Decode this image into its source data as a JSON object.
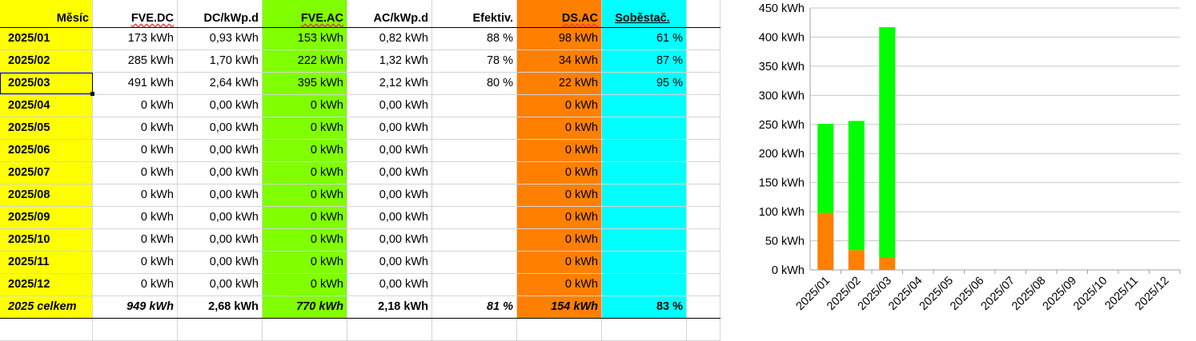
{
  "table": {
    "headers": [
      "Měsíc",
      "FVE.DC",
      "DC/kWp.d",
      "FVE.AC",
      "AC/kWp.d",
      "Efektiv.",
      "DS.AC",
      "Soběstač."
    ],
    "rows": [
      [
        "2025/01",
        "173 kWh",
        "0,93 kWh",
        "153 kWh",
        "0,82 kWh",
        "88 %",
        "98 kWh",
        "61 %"
      ],
      [
        "2025/02",
        "285 kWh",
        "1,70 kWh",
        "222 kWh",
        "1,32 kWh",
        "78 %",
        "34 kWh",
        "87 %"
      ],
      [
        "2025/03",
        "491 kWh",
        "2,64 kWh",
        "395 kWh",
        "2,12 kWh",
        "80 %",
        "22 kWh",
        "95 %"
      ],
      [
        "2025/04",
        "0 kWh",
        "0,00 kWh",
        "0 kWh",
        "0,00 kWh",
        "",
        "0 kWh",
        ""
      ],
      [
        "2025/05",
        "0 kWh",
        "0,00 kWh",
        "0 kWh",
        "0,00 kWh",
        "",
        "0 kWh",
        ""
      ],
      [
        "2025/06",
        "0 kWh",
        "0,00 kWh",
        "0 kWh",
        "0,00 kWh",
        "",
        "0 kWh",
        ""
      ],
      [
        "2025/07",
        "0 kWh",
        "0,00 kWh",
        "0 kWh",
        "0,00 kWh",
        "",
        "0 kWh",
        ""
      ],
      [
        "2025/08",
        "0 kWh",
        "0,00 kWh",
        "0 kWh",
        "0,00 kWh",
        "",
        "0 kWh",
        ""
      ],
      [
        "2025/09",
        "0 kWh",
        "0,00 kWh",
        "0 kWh",
        "0,00 kWh",
        "",
        "0 kWh",
        ""
      ],
      [
        "2025/10",
        "0 kWh",
        "0,00 kWh",
        "0 kWh",
        "0,00 kWh",
        "",
        "0 kWh",
        ""
      ],
      [
        "2025/11",
        "0 kWh",
        "0,00 kWh",
        "0 kWh",
        "0,00 kWh",
        "",
        "0 kWh",
        ""
      ],
      [
        "2025/12",
        "0 kWh",
        "0,00 kWh",
        "0 kWh",
        "0,00 kWh",
        "",
        "0 kWh",
        ""
      ]
    ],
    "total": [
      "2025 celkem",
      "949 kWh",
      "2,68 kWh",
      "770 kWh",
      "2,18 kWh",
      "81 %",
      "154 kWh",
      "83 %"
    ],
    "selected_cell": "2025/03",
    "colors": {
      "month": "#ffff00",
      "fve_ac": "#80ff00",
      "ds_ac": "#ff8000",
      "sobestac": "#00ffff"
    }
  },
  "chart_data": {
    "type": "bar",
    "stacked": true,
    "categories": [
      "2025/01",
      "2025/02",
      "2025/03",
      "2025/04",
      "2025/05",
      "2025/06",
      "2025/07",
      "2025/08",
      "2025/09",
      "2025/10",
      "2025/11",
      "2025/12"
    ],
    "series": [
      {
        "color": "#ff8000",
        "values": [
          98,
          34,
          22,
          0,
          0,
          0,
          0,
          0,
          0,
          0,
          0,
          0
        ]
      },
      {
        "color": "#00ff00",
        "values": [
          153,
          222,
          395,
          0,
          0,
          0,
          0,
          0,
          0,
          0,
          0,
          0
        ]
      }
    ],
    "ylim": [
      0,
      450
    ],
    "yticks": [
      0,
      50,
      100,
      150,
      200,
      250,
      300,
      350,
      400,
      450
    ],
    "ytick_unit": "kWh",
    "grid": true,
    "legend": "none"
  }
}
